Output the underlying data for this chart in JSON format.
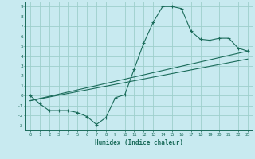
{
  "title": "",
  "xlabel": "Humidex (Indice chaleur)",
  "bg_color": "#c8eaf0",
  "line_color": "#1a6b5a",
  "grid_color": "#9ecfcc",
  "xlim": [
    -0.5,
    23.5
  ],
  "ylim": [
    -3.5,
    9.5
  ],
  "xticks": [
    0,
    1,
    2,
    3,
    4,
    5,
    6,
    7,
    8,
    9,
    10,
    11,
    12,
    13,
    14,
    15,
    16,
    17,
    18,
    19,
    20,
    21,
    22,
    23
  ],
  "yticks": [
    -3,
    -2,
    -1,
    0,
    1,
    2,
    3,
    4,
    5,
    6,
    7,
    8,
    9
  ],
  "line1_x": [
    0,
    1,
    2,
    3,
    4,
    5,
    6,
    7,
    8,
    9,
    10,
    11,
    12,
    13,
    14,
    15,
    16,
    17,
    18,
    19,
    20,
    21,
    22,
    23
  ],
  "line1_y": [
    0.0,
    -0.8,
    -1.5,
    -1.5,
    -1.5,
    -1.7,
    -2.1,
    -2.9,
    -2.2,
    -0.2,
    0.1,
    2.7,
    5.3,
    7.4,
    9.0,
    9.0,
    8.8,
    6.5,
    5.7,
    5.6,
    5.8,
    5.8,
    4.8,
    4.5
  ],
  "line2_x": [
    0,
    23
  ],
  "line2_y": [
    -0.5,
    4.5
  ],
  "line3_x": [
    0,
    23
  ],
  "line3_y": [
    -0.5,
    3.7
  ]
}
